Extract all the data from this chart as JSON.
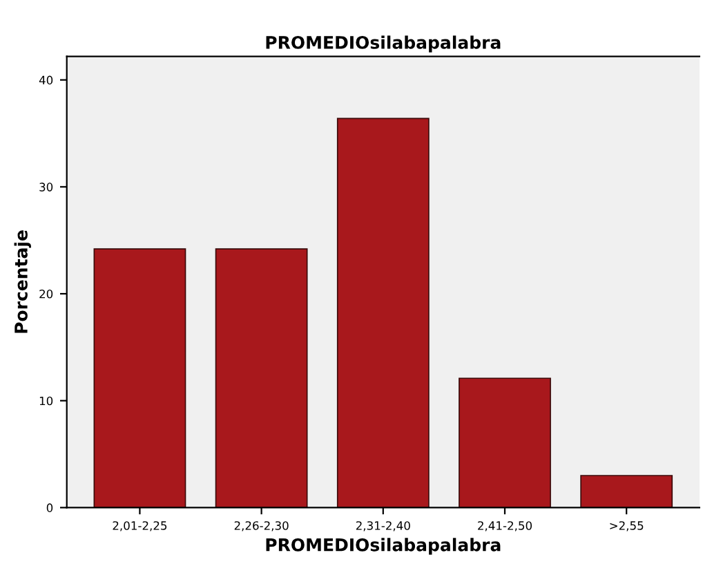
{
  "chart_data": {
    "type": "bar",
    "title": "PROMEDIOsilabapalabra",
    "xlabel": "PROMEDIOsilabapalabra",
    "ylabel": "Porcentaje",
    "categories": [
      "2,01-2,25",
      "2,26-2,30",
      "2,31-2,40",
      "2,41-2,50",
      ">2,55"
    ],
    "values": [
      24.2,
      24.2,
      36.4,
      12.1,
      3.0
    ],
    "color": "#a8181c",
    "ylim": [
      0,
      42.2
    ],
    "yticks": [
      0,
      10,
      20,
      30,
      40
    ],
    "grid": false,
    "legend": false
  }
}
